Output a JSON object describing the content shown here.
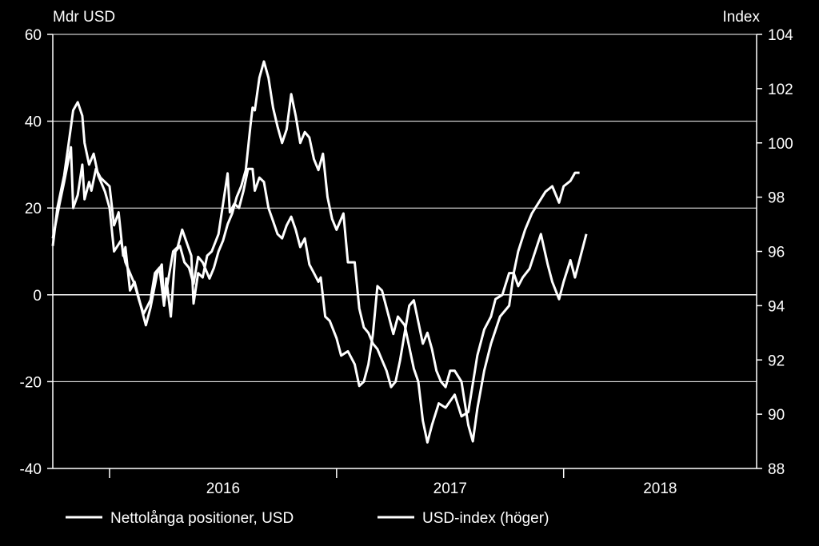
{
  "chart_data": {
    "type": "line",
    "title": "",
    "left_axis": {
      "label": "Mdr USD",
      "range": [
        -40,
        60
      ],
      "ticks": [
        "-40",
        "-20",
        "0",
        "20",
        "40",
        "60"
      ]
    },
    "right_axis": {
      "label": "Index",
      "range": [
        88,
        104
      ],
      "ticks": [
        "88",
        "90",
        "92",
        "94",
        "96",
        "98",
        "100",
        "102",
        "104"
      ]
    },
    "x_axis": {
      "range": [
        2015.75,
        2018.85
      ],
      "tick_labels": [
        "2016",
        "2017",
        "2018"
      ],
      "year_boundaries": [
        2016.0,
        2017.0,
        2018.0
      ]
    },
    "grid": true,
    "legend_position": "bottom-left",
    "colors": {
      "background": "#000000",
      "lines": "#ffffff",
      "grid": "#ffffff"
    },
    "series": [
      {
        "name": "Nettolånga positioner, USD",
        "axis": "left",
        "points": [
          [
            2015.75,
            13
          ],
          [
            2015.78,
            21
          ],
          [
            2015.8,
            26
          ],
          [
            2015.83,
            34
          ],
          [
            2015.84,
            20
          ],
          [
            2015.86,
            23
          ],
          [
            2015.88,
            30
          ],
          [
            2015.89,
            22
          ],
          [
            2015.91,
            26
          ],
          [
            2015.92,
            24
          ],
          [
            2015.94,
            29
          ],
          [
            2015.96,
            27
          ],
          [
            2016.0,
            25
          ],
          [
            2016.02,
            16
          ],
          [
            2016.04,
            19
          ],
          [
            2016.06,
            9
          ],
          [
            2016.07,
            11
          ],
          [
            2016.09,
            1
          ],
          [
            2016.11,
            3
          ],
          [
            2016.13,
            -1
          ],
          [
            2016.15,
            -5
          ],
          [
            2016.16,
            -7
          ],
          [
            2016.18,
            -3
          ],
          [
            2016.21,
            5
          ],
          [
            2016.23,
            7
          ],
          [
            2016.24,
            -2
          ],
          [
            2016.26,
            4
          ],
          [
            2016.28,
            10
          ],
          [
            2016.3,
            11
          ],
          [
            2016.32,
            15
          ],
          [
            2016.34,
            12
          ],
          [
            2016.36,
            9
          ],
          [
            2016.37,
            -2
          ],
          [
            2016.39,
            5
          ],
          [
            2016.41,
            4
          ],
          [
            2016.43,
            9
          ],
          [
            2016.45,
            10
          ],
          [
            2016.48,
            14
          ],
          [
            2016.5,
            21
          ],
          [
            2016.52,
            28
          ],
          [
            2016.53,
            19
          ],
          [
            2016.55,
            21
          ],
          [
            2016.57,
            20
          ],
          [
            2016.59,
            24
          ],
          [
            2016.61,
            29
          ],
          [
            2016.63,
            29
          ],
          [
            2016.64,
            24
          ],
          [
            2016.66,
            27
          ],
          [
            2016.68,
            26
          ],
          [
            2016.7,
            20
          ],
          [
            2016.72,
            17
          ],
          [
            2016.74,
            14
          ],
          [
            2016.76,
            13
          ],
          [
            2016.78,
            16
          ],
          [
            2016.8,
            18
          ],
          [
            2016.82,
            15
          ],
          [
            2016.84,
            11
          ],
          [
            2016.86,
            13
          ],
          [
            2016.88,
            7
          ],
          [
            2016.9,
            5
          ],
          [
            2016.92,
            3
          ],
          [
            2016.93,
            4
          ],
          [
            2016.95,
            -5
          ],
          [
            2016.97,
            -6
          ],
          [
            2017.0,
            -10
          ],
          [
            2017.02,
            -14
          ],
          [
            2017.05,
            -13
          ],
          [
            2017.08,
            -16
          ],
          [
            2017.1,
            -21
          ],
          [
            2017.12,
            -20
          ],
          [
            2017.14,
            -16
          ],
          [
            2017.16,
            -9
          ],
          [
            2017.18,
            2
          ],
          [
            2017.2,
            1
          ],
          [
            2017.22,
            -3
          ],
          [
            2017.25,
            -9
          ],
          [
            2017.27,
            -5
          ],
          [
            2017.3,
            -7
          ],
          [
            2017.32,
            -12
          ],
          [
            2017.34,
            -17
          ],
          [
            2017.36,
            -20
          ],
          [
            2017.38,
            -29
          ],
          [
            2017.4,
            -34
          ],
          [
            2017.42,
            -30
          ],
          [
            2017.45,
            -25
          ],
          [
            2017.48,
            -26
          ],
          [
            2017.52,
            -23
          ],
          [
            2017.55,
            -28
          ],
          [
            2017.58,
            -27
          ],
          [
            2017.62,
            -14
          ],
          [
            2017.65,
            -8
          ],
          [
            2017.68,
            -5
          ],
          [
            2017.7,
            -1
          ],
          [
            2017.73,
            0
          ],
          [
            2017.76,
            5
          ],
          [
            2017.78,
            5
          ],
          [
            2017.8,
            2
          ],
          [
            2017.82,
            4
          ],
          [
            2017.85,
            6
          ],
          [
            2017.9,
            14
          ],
          [
            2017.93,
            7
          ],
          [
            2017.95,
            3
          ],
          [
            2017.98,
            -1
          ],
          [
            2018.0,
            3
          ],
          [
            2018.03,
            8
          ],
          [
            2018.05,
            4
          ],
          [
            2018.07,
            8
          ],
          [
            2018.1,
            14
          ]
        ]
      },
      {
        "name": "USD-index (höger)",
        "axis": "right",
        "points": [
          [
            2015.75,
            96.2
          ],
          [
            2015.77,
            97.6
          ],
          [
            2015.8,
            98.8
          ],
          [
            2015.82,
            100.0
          ],
          [
            2015.84,
            101.2
          ],
          [
            2015.86,
            101.5
          ],
          [
            2015.88,
            101.0
          ],
          [
            2015.89,
            100.0
          ],
          [
            2015.91,
            99.2
          ],
          [
            2015.93,
            99.6
          ],
          [
            2015.95,
            98.8
          ],
          [
            2015.98,
            98.2
          ],
          [
            2016.0,
            97.6
          ],
          [
            2016.02,
            96.0
          ],
          [
            2016.05,
            96.4
          ],
          [
            2016.07,
            95.6
          ],
          [
            2016.09,
            95.2
          ],
          [
            2016.11,
            94.8
          ],
          [
            2016.13,
            94.2
          ],
          [
            2016.15,
            93.7
          ],
          [
            2016.18,
            94.2
          ],
          [
            2016.2,
            95.2
          ],
          [
            2016.22,
            95.4
          ],
          [
            2016.24,
            94.0
          ],
          [
            2016.25,
            95.0
          ],
          [
            2016.27,
            93.6
          ],
          [
            2016.29,
            96.0
          ],
          [
            2016.31,
            96.2
          ],
          [
            2016.33,
            95.6
          ],
          [
            2016.35,
            95.4
          ],
          [
            2016.37,
            94.8
          ],
          [
            2016.39,
            95.8
          ],
          [
            2016.41,
            95.6
          ],
          [
            2016.44,
            95.0
          ],
          [
            2016.46,
            95.4
          ],
          [
            2016.48,
            96.0
          ],
          [
            2016.5,
            96.4
          ],
          [
            2016.52,
            97.0
          ],
          [
            2016.54,
            97.4
          ],
          [
            2016.56,
            98.0
          ],
          [
            2016.58,
            98.4
          ],
          [
            2016.6,
            99.0
          ],
          [
            2016.62,
            100.6
          ],
          [
            2016.63,
            101.3
          ],
          [
            2016.64,
            101.2
          ],
          [
            2016.66,
            102.4
          ],
          [
            2016.68,
            103.0
          ],
          [
            2016.7,
            102.4
          ],
          [
            2016.72,
            101.3
          ],
          [
            2016.74,
            100.6
          ],
          [
            2016.76,
            100.0
          ],
          [
            2016.78,
            100.5
          ],
          [
            2016.8,
            101.8
          ],
          [
            2016.82,
            101.0
          ],
          [
            2016.84,
            100.0
          ],
          [
            2016.86,
            100.4
          ],
          [
            2016.88,
            100.2
          ],
          [
            2016.9,
            99.4
          ],
          [
            2016.92,
            99.0
          ],
          [
            2016.94,
            99.6
          ],
          [
            2016.96,
            98.0
          ],
          [
            2016.98,
            97.2
          ],
          [
            2017.0,
            96.8
          ],
          [
            2017.03,
            97.4
          ],
          [
            2017.05,
            95.6
          ],
          [
            2017.08,
            95.6
          ],
          [
            2017.1,
            93.9
          ],
          [
            2017.12,
            93.2
          ],
          [
            2017.14,
            93.0
          ],
          [
            2017.16,
            92.6
          ],
          [
            2017.18,
            92.4
          ],
          [
            2017.2,
            92.0
          ],
          [
            2017.22,
            91.6
          ],
          [
            2017.24,
            91.0
          ],
          [
            2017.26,
            91.2
          ],
          [
            2017.28,
            92.0
          ],
          [
            2017.3,
            93.0
          ],
          [
            2017.32,
            94.0
          ],
          [
            2017.34,
            94.2
          ],
          [
            2017.36,
            93.4
          ],
          [
            2017.38,
            92.6
          ],
          [
            2017.4,
            93.0
          ],
          [
            2017.42,
            92.4
          ],
          [
            2017.44,
            91.6
          ],
          [
            2017.46,
            91.2
          ],
          [
            2017.48,
            91.0
          ],
          [
            2017.5,
            91.6
          ],
          [
            2017.52,
            91.6
          ],
          [
            2017.55,
            91.2
          ],
          [
            2017.58,
            89.6
          ],
          [
            2017.6,
            89.0
          ],
          [
            2017.62,
            90.2
          ],
          [
            2017.65,
            91.6
          ],
          [
            2017.68,
            92.6
          ],
          [
            2017.72,
            93.6
          ],
          [
            2017.76,
            94.0
          ],
          [
            2017.78,
            95.2
          ],
          [
            2017.8,
            96.0
          ],
          [
            2017.83,
            96.8
          ],
          [
            2017.86,
            97.4
          ],
          [
            2017.89,
            97.8
          ],
          [
            2017.92,
            98.2
          ],
          [
            2017.95,
            98.4
          ],
          [
            2017.98,
            97.8
          ],
          [
            2018.0,
            98.4
          ],
          [
            2018.03,
            98.6
          ],
          [
            2018.05,
            98.9
          ],
          [
            2018.07,
            98.9
          ]
        ]
      }
    ]
  }
}
